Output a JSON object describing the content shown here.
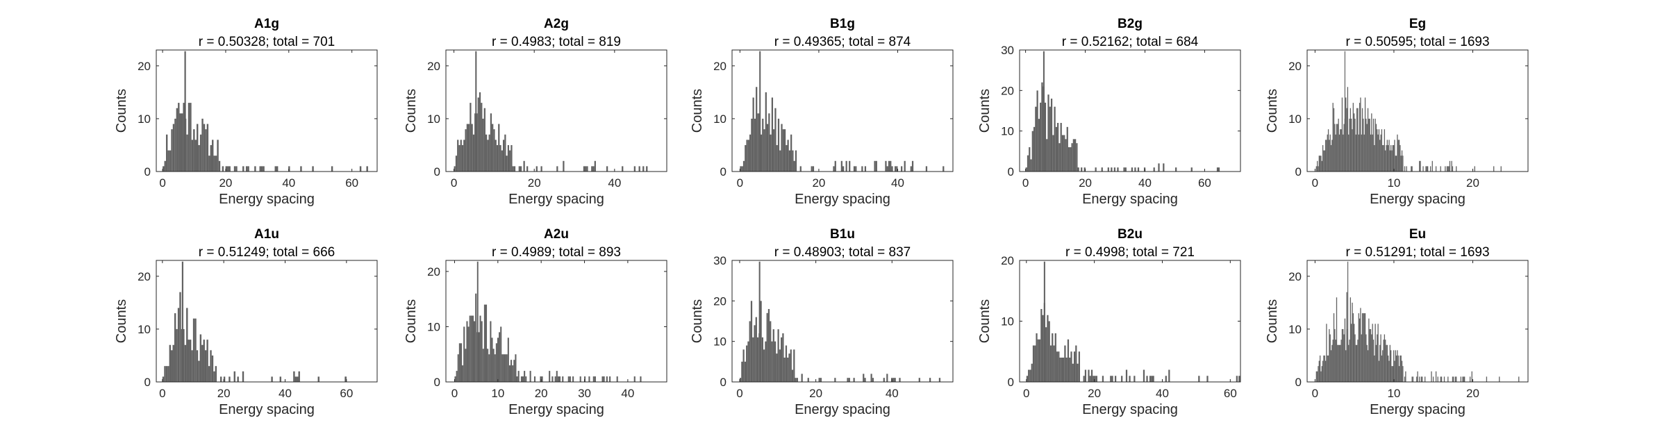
{
  "chart_data": [
    {
      "type": "bar",
      "title": "A1g",
      "subtitle": "r = 0.50328; total = 701",
      "xlabel": "Energy spacing",
      "ylabel": "Counts",
      "xlim": [
        -2,
        68
      ],
      "ylim": [
        0,
        23
      ],
      "xticks": [
        0,
        20,
        40,
        60
      ],
      "yticks": [
        0,
        10,
        20
      ],
      "bins": 130,
      "tail": 48,
      "peak": 5.5,
      "ref": 0.03,
      "seed": 11,
      "gap": 8,
      "grid": false,
      "legend": "none",
      "color": "#616161"
    },
    {
      "type": "bar",
      "title": "A2g",
      "subtitle": "r = 0.4983; total = 819",
      "xlabel": "Energy spacing",
      "ylabel": "Counts",
      "xlim": [
        -2,
        53
      ],
      "ylim": [
        0,
        23
      ],
      "xticks": [
        0,
        20,
        40
      ],
      "yticks": [
        0,
        10,
        20
      ],
      "bins": 140,
      "tail": 36,
      "peak": 4.5,
      "ref": 0.03,
      "seed": 23,
      "gap": 3,
      "grid": false,
      "legend": "none",
      "color": "#616161"
    },
    {
      "type": "bar",
      "title": "B1g",
      "subtitle": "r = 0.49365; total = 874",
      "xlabel": "Energy spacing",
      "ylabel": "Counts",
      "xlim": [
        -2,
        54
      ],
      "ylim": [
        0,
        23
      ],
      "xticks": [
        0,
        20,
        40
      ],
      "yticks": [
        0,
        10,
        20
      ],
      "bins": 140,
      "tail": 44,
      "peak": 4.5,
      "ref": 0.03,
      "seed": 37,
      "gap": 4,
      "grid": false,
      "legend": "none",
      "color": "#616161"
    },
    {
      "type": "bar",
      "title": "B2g",
      "subtitle": "r = 0.52162; total = 684",
      "xlabel": "Energy spacing",
      "ylabel": "Counts",
      "xlim": [
        -2,
        72
      ],
      "ylim": [
        0,
        30
      ],
      "xticks": [
        0,
        20,
        40,
        60
      ],
      "yticks": [
        0,
        10,
        20,
        30
      ],
      "bins": 140,
      "tail": 46,
      "peak": 5.5,
      "ref": 0.035,
      "seed": 41,
      "gap": 6,
      "grid": false,
      "legend": "none",
      "color": "#616161"
    },
    {
      "type": "bar",
      "title": "Eg",
      "subtitle": "r = 0.50595; total = 1693",
      "xlabel": "Energy spacing",
      "ylabel": "Counts",
      "xlim": [
        -1,
        27
      ],
      "ylim": [
        0,
        23
      ],
      "xticks": [
        0,
        10,
        20
      ],
      "yticks": [
        0,
        10,
        20
      ],
      "bins": 240,
      "tail": 18,
      "peak": 3.5,
      "ref": 0.015,
      "seed": 53,
      "gap": 2,
      "grid": false,
      "legend": "none",
      "color": "#616161"
    },
    {
      "type": "bar",
      "title": "A1u",
      "subtitle": "r = 0.51249; total = 666",
      "xlabel": "Energy spacing",
      "ylabel": "Counts",
      "xlim": [
        -2,
        70
      ],
      "ylim": [
        0,
        23
      ],
      "xticks": [
        0,
        20,
        40,
        60
      ],
      "yticks": [
        0,
        10,
        20
      ],
      "bins": 130,
      "tail": 46,
      "peak": 5.5,
      "ref": 0.03,
      "seed": 67,
      "gap": 6,
      "grid": false,
      "legend": "none",
      "color": "#616161"
    },
    {
      "type": "bar",
      "title": "A2u",
      "subtitle": "r = 0.4989; total = 893",
      "xlabel": "Energy spacing",
      "ylabel": "Counts",
      "xlim": [
        -2,
        49
      ],
      "ylim": [
        0,
        22
      ],
      "xticks": [
        0,
        10,
        20,
        30,
        40
      ],
      "yticks": [
        0,
        10,
        20
      ],
      "bins": 150,
      "tail": 38,
      "peak": 4.5,
      "ref": 0.025,
      "seed": 71,
      "gap": 4,
      "grid": false,
      "legend": "none",
      "color": "#616161"
    },
    {
      "type": "bar",
      "title": "B1u",
      "subtitle": "r = 0.48903; total = 837",
      "xlabel": "Energy spacing",
      "ylabel": "Counts",
      "xlim": [
        -2,
        56
      ],
      "ylim": [
        0,
        30
      ],
      "xticks": [
        0,
        20,
        40
      ],
      "yticks": [
        0,
        10,
        20,
        30
      ],
      "bins": 140,
      "tail": 44,
      "peak": 4.5,
      "ref": 0.03,
      "seed": 83,
      "gap": 4,
      "grid": false,
      "legend": "none",
      "color": "#616161"
    },
    {
      "type": "bar",
      "title": "B2u",
      "subtitle": "r = 0.4998; total = 721",
      "xlabel": "Energy spacing",
      "ylabel": "Counts",
      "xlim": [
        -2,
        63
      ],
      "ylim": [
        0,
        20
      ],
      "xticks": [
        0,
        20,
        40,
        60
      ],
      "yticks": [
        0,
        10,
        20
      ],
      "bins": 140,
      "tail": 44,
      "peak": 5,
      "ref": 0.03,
      "seed": 97,
      "gap": 6,
      "grid": false,
      "legend": "none",
      "color": "#616161"
    },
    {
      "type": "bar",
      "title": "Eu",
      "subtitle": "r = 0.51291; total = 1693",
      "xlabel": "Energy spacing",
      "ylabel": "Counts",
      "xlim": [
        -1,
        27
      ],
      "ylim": [
        0,
        23
      ],
      "xticks": [
        0,
        10,
        20
      ],
      "yticks": [
        0,
        10,
        20
      ],
      "bins": 240,
      "tail": 20,
      "peak": 3.5,
      "ref": 0.015,
      "seed": 101,
      "gap": 2,
      "grid": false,
      "legend": "none",
      "color": "#616161"
    }
  ]
}
